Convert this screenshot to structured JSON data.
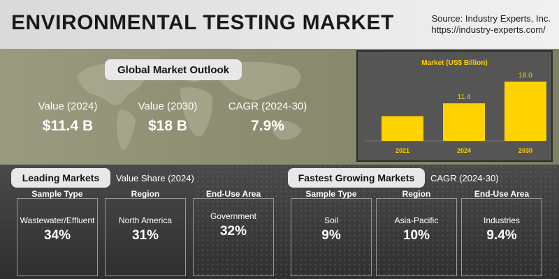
{
  "header": {
    "title": "ENVIRONMENTAL TESTING MARKET",
    "source_line1": "Source: Industry Experts, Inc.",
    "source_line2": "https://industry-experts.com/"
  },
  "outlook": {
    "title": "Global Market Outlook",
    "stats": [
      {
        "label": "Value (2024)",
        "value": "$11.4 B"
      },
      {
        "label": "Value (2030)",
        "value": "$18 B"
      },
      {
        "label": "CAGR (2024-30)",
        "value": "7.9%"
      }
    ]
  },
  "chart_data": {
    "type": "bar",
    "title": "Market (US$ Billion)",
    "categories": [
      "2021",
      "2024",
      "2030"
    ],
    "values": [
      null,
      11.4,
      18.0
    ],
    "value_labels": [
      "",
      "11.4",
      "18.0"
    ],
    "ylim": [
      0,
      20
    ],
    "grid": false,
    "bar_color": "#ffd200",
    "label_color": "#ffd200"
  },
  "leading": {
    "title": "Leading Markets",
    "subtitle": "Value Share (2024)",
    "cards": [
      {
        "header": "Sample Type",
        "label": "Wastewater/Effluent",
        "value": "34%"
      },
      {
        "header": "Region",
        "label": "North America",
        "value": "31%"
      },
      {
        "header": "End-Use Area",
        "label": "Government",
        "value": "32%"
      }
    ]
  },
  "fastest": {
    "title": "Fastest Growing Markets",
    "subtitle": "CAGR (2024-30)",
    "cards": [
      {
        "header": "Sample Type",
        "label": "Soil",
        "value": "9%"
      },
      {
        "header": "Region",
        "label": "Asia-Pacific",
        "value": "10%"
      },
      {
        "header": "End-Use Area",
        "label": "Industries",
        "value": "9.4%"
      }
    ]
  }
}
